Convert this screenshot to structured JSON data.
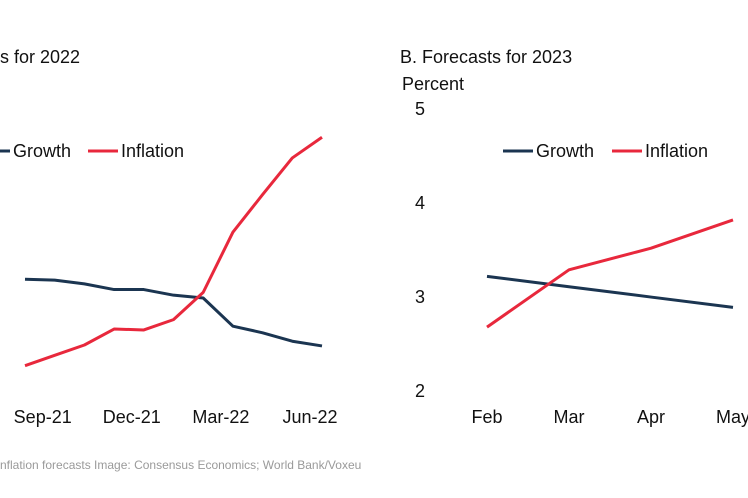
{
  "chart_data": [
    {
      "type": "line",
      "title": "s for 2022",
      "categories": [
        null,
        "Sep-21",
        null,
        null,
        "Dec-21",
        null,
        null,
        "Mar-22",
        null,
        null,
        "Jun-22"
      ],
      "series": [
        {
          "name": "Growth",
          "color": "#1b3551",
          "values": [
            3.2,
            3.19,
            3.15,
            3.09,
            3.09,
            3.03,
            3.0,
            2.7,
            2.63,
            2.54,
            2.49
          ]
        },
        {
          "name": "Inflation",
          "color": "#e8283c",
          "values": [
            2.28,
            2.39,
            2.5,
            2.67,
            2.66,
            2.77,
            3.06,
            3.7,
            4.1,
            4.49,
            4.71
          ]
        }
      ],
      "ylim": [
        2,
        5
      ]
    },
    {
      "type": "line",
      "title": "B. Forecasts for 2023",
      "y_label": "Percent",
      "categories": [
        "Feb",
        "Mar",
        "Apr",
        "May"
      ],
      "series": [
        {
          "name": "Growth",
          "color": "#1b3551",
          "values": [
            3.23,
            3.12,
            3.01,
            2.9
          ]
        },
        {
          "name": "Inflation",
          "color": "#e8283c",
          "values": [
            2.69,
            3.3,
            3.53,
            3.83
          ]
        }
      ],
      "ylim": [
        2,
        5
      ],
      "yticks": [
        2,
        3,
        4,
        5
      ]
    }
  ],
  "footer": "nflation forecasts Image: Consensus Economics; World Bank/Voxeu"
}
